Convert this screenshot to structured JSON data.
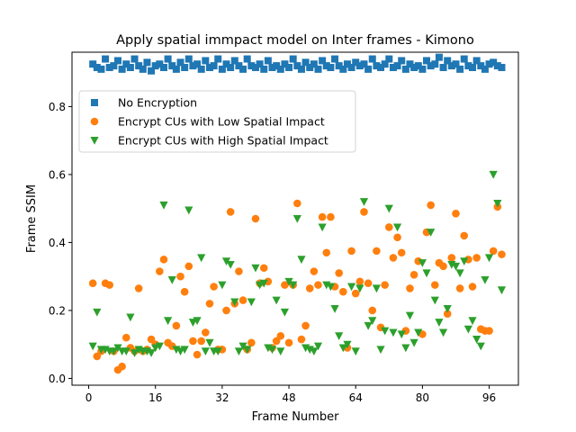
{
  "chart_data": {
    "type": "scatter",
    "title": "Apply spatial immpact model on Inter frames - Kimono",
    "xlabel": "Frame Number",
    "ylabel": "Frame SSIM",
    "xlim": [
      -4,
      103
    ],
    "ylim": [
      -0.02,
      0.96
    ],
    "xticks": [
      0,
      16,
      32,
      48,
      64,
      80,
      96
    ],
    "yticks": [
      0.0,
      0.2,
      0.4,
      0.6,
      0.8
    ],
    "ytick_labels": [
      "0.0",
      "0.2",
      "0.4",
      "0.6",
      "0.8"
    ],
    "grid": false,
    "legend_position": "upper-left",
    "series": [
      {
        "name": "No Encryption",
        "marker": "square",
        "color": "#1f77b4",
        "x": [
          1,
          2,
          3,
          4,
          5,
          6,
          7,
          8,
          9,
          10,
          11,
          12,
          13,
          14,
          15,
          16,
          17,
          18,
          19,
          20,
          21,
          22,
          23,
          24,
          25,
          26,
          27,
          28,
          29,
          30,
          31,
          32,
          33,
          34,
          35,
          36,
          37,
          38,
          39,
          40,
          41,
          42,
          43,
          44,
          45,
          46,
          47,
          48,
          49,
          50,
          51,
          52,
          53,
          54,
          55,
          56,
          57,
          58,
          59,
          60,
          61,
          62,
          63,
          64,
          65,
          66,
          67,
          68,
          69,
          70,
          71,
          72,
          73,
          74,
          75,
          76,
          77,
          78,
          79,
          80,
          81,
          82,
          83,
          84,
          85,
          86,
          87,
          88,
          89,
          90,
          91,
          92,
          93,
          94,
          95,
          96,
          97,
          98,
          99
        ],
        "y": [
          0.925,
          0.915,
          0.91,
          0.94,
          0.915,
          0.92,
          0.935,
          0.91,
          0.925,
          0.915,
          0.94,
          0.92,
          0.91,
          0.93,
          0.905,
          0.92,
          0.925,
          0.915,
          0.94,
          0.92,
          0.91,
          0.93,
          0.915,
          0.94,
          0.92,
          0.925,
          0.91,
          0.935,
          0.915,
          0.92,
          0.94,
          0.91,
          0.925,
          0.915,
          0.935,
          0.92,
          0.91,
          0.94,
          0.92,
          0.915,
          0.925,
          0.91,
          0.935,
          0.915,
          0.92,
          0.91,
          0.925,
          0.915,
          0.94,
          0.92,
          0.91,
          0.93,
          0.915,
          0.925,
          0.91,
          0.935,
          0.92,
          0.915,
          0.94,
          0.92,
          0.91,
          0.925,
          0.915,
          0.93,
          0.92,
          0.925,
          0.91,
          0.94,
          0.92,
          0.915,
          0.925,
          0.94,
          0.915,
          0.92,
          0.935,
          0.91,
          0.925,
          0.915,
          0.92,
          0.91,
          0.935,
          0.92,
          0.925,
          0.945,
          0.915,
          0.935,
          0.92,
          0.925,
          0.91,
          0.94,
          0.92,
          0.915,
          0.935,
          0.92,
          0.91,
          0.925,
          0.93,
          0.92,
          0.915
        ]
      },
      {
        "name": "Encrypt CUs with Low Spatial Impact",
        "marker": "circle",
        "color": "#ff7f0e",
        "x": [
          1,
          2,
          3,
          4,
          5,
          6,
          7,
          8,
          9,
          10,
          11,
          12,
          13,
          14,
          15,
          16,
          17,
          18,
          19,
          20,
          21,
          22,
          23,
          24,
          25,
          26,
          27,
          28,
          29,
          30,
          31,
          32,
          33,
          34,
          35,
          36,
          37,
          38,
          39,
          40,
          41,
          42,
          43,
          44,
          45,
          46,
          47,
          48,
          49,
          50,
          51,
          52,
          53,
          54,
          55,
          56,
          57,
          58,
          59,
          60,
          61,
          62,
          63,
          64,
          65,
          66,
          67,
          68,
          69,
          70,
          71,
          72,
          73,
          74,
          75,
          76,
          77,
          78,
          79,
          80,
          81,
          82,
          83,
          84,
          85,
          86,
          87,
          88,
          89,
          90,
          91,
          92,
          93,
          94,
          95,
          96,
          97,
          98,
          99
        ],
        "y": [
          0.28,
          0.065,
          0.08,
          0.28,
          0.275,
          0.08,
          0.025,
          0.035,
          0.12,
          0.09,
          0.08,
          0.265,
          0.08,
          0.085,
          0.115,
          0.1,
          0.315,
          0.35,
          0.105,
          0.095,
          0.155,
          0.3,
          0.255,
          0.33,
          0.11,
          0.07,
          0.11,
          0.135,
          0.22,
          0.27,
          0.085,
          0.085,
          0.2,
          0.49,
          0.22,
          0.315,
          0.23,
          0.085,
          0.105,
          0.47,
          0.28,
          0.325,
          0.285,
          0.09,
          0.11,
          0.125,
          0.275,
          0.105,
          0.275,
          0.515,
          0.115,
          0.155,
          0.265,
          0.315,
          0.275,
          0.475,
          0.37,
          0.475,
          0.27,
          0.31,
          0.255,
          0.09,
          0.375,
          0.25,
          0.285,
          0.49,
          0.28,
          0.2,
          0.375,
          0.15,
          0.275,
          0.445,
          0.355,
          0.415,
          0.37,
          0.14,
          0.265,
          0.305,
          0.345,
          0.13,
          0.43,
          0.51,
          0.275,
          0.34,
          0.33,
          0.19,
          0.355,
          0.485,
          0.265,
          0.42,
          0.35,
          0.27,
          0.355,
          0.145,
          0.14,
          0.14,
          0.375,
          0.505,
          0.365
        ]
      },
      {
        "name": "Encrypt CUs with High Spatial Impact",
        "marker": "triangle-down",
        "color": "#2ca02c",
        "x": [
          1,
          2,
          3,
          4,
          5,
          6,
          7,
          8,
          9,
          10,
          11,
          12,
          13,
          14,
          15,
          16,
          17,
          18,
          19,
          20,
          21,
          22,
          23,
          24,
          25,
          26,
          27,
          28,
          29,
          30,
          31,
          32,
          33,
          34,
          35,
          36,
          37,
          38,
          39,
          40,
          41,
          42,
          43,
          44,
          45,
          46,
          47,
          48,
          49,
          50,
          51,
          52,
          53,
          54,
          55,
          56,
          57,
          58,
          59,
          60,
          61,
          62,
          63,
          64,
          65,
          66,
          67,
          68,
          69,
          70,
          71,
          72,
          73,
          74,
          75,
          76,
          77,
          78,
          79,
          80,
          81,
          82,
          83,
          84,
          85,
          86,
          87,
          88,
          89,
          90,
          91,
          92,
          93,
          94,
          95,
          96,
          97,
          98,
          99
        ],
        "y": [
          0.095,
          0.195,
          0.085,
          0.085,
          0.08,
          0.08,
          0.09,
          0.08,
          0.08,
          0.18,
          0.075,
          0.085,
          0.08,
          0.08,
          0.075,
          0.09,
          0.095,
          0.51,
          0.17,
          0.29,
          0.085,
          0.08,
          0.085,
          0.495,
          0.165,
          0.17,
          0.355,
          0.08,
          0.105,
          0.08,
          0.08,
          0.275,
          0.345,
          0.335,
          0.225,
          0.08,
          0.095,
          0.085,
          0.225,
          0.325,
          0.275,
          0.28,
          0.09,
          0.085,
          0.23,
          0.08,
          0.195,
          0.285,
          0.275,
          0.47,
          0.35,
          0.09,
          0.085,
          0.08,
          0.095,
          0.445,
          0.275,
          0.27,
          0.205,
          0.125,
          0.09,
          0.1,
          0.27,
          0.08,
          0.265,
          0.52,
          0.155,
          0.17,
          0.265,
          0.085,
          0.14,
          0.5,
          0.135,
          0.445,
          0.13,
          0.09,
          0.185,
          0.105,
          0.135,
          0.34,
          0.31,
          0.43,
          0.23,
          0.165,
          0.135,
          0.205,
          0.335,
          0.33,
          0.31,
          0.345,
          0.145,
          0.17,
          0.115,
          0.095,
          0.29,
          0.355,
          0.6,
          0.515,
          0.26
        ]
      }
    ]
  }
}
